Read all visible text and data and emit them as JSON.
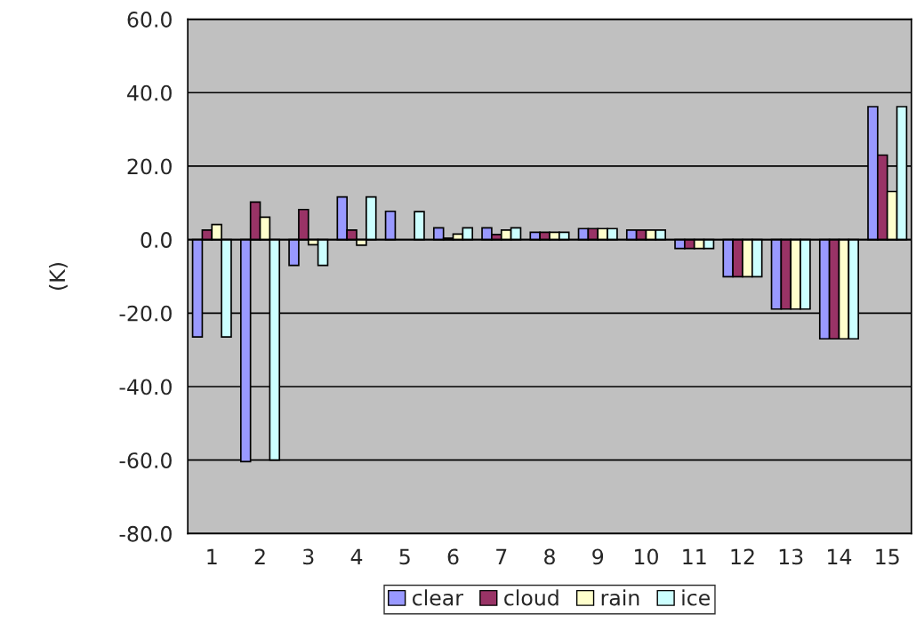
{
  "chart_data": {
    "type": "bar",
    "ylabel": "(K)",
    "categories": [
      "1",
      "2",
      "3",
      "4",
      "5",
      "6",
      "7",
      "8",
      "9",
      "10",
      "11",
      "12",
      "13",
      "14",
      "15"
    ],
    "series": [
      {
        "name": "clear",
        "color": "#9999ff",
        "values": [
          -26.5,
          -60.4,
          -7.0,
          11.6,
          7.7,
          3.2,
          3.2,
          2.0,
          3.0,
          2.6,
          -2.4,
          -10.1,
          -18.9,
          -27.0,
          36.2
        ]
      },
      {
        "name": "cloud",
        "color": "#993366",
        "values": [
          2.6,
          10.2,
          8.2,
          2.6,
          null,
          0.4,
          1.4,
          2.0,
          3.0,
          2.6,
          -2.4,
          -10.1,
          -18.9,
          -27.0,
          23.0
        ]
      },
      {
        "name": "rain",
        "color": "#ffffcc",
        "values": [
          4.1,
          6.1,
          -1.4,
          -1.5,
          null,
          1.5,
          2.6,
          2.0,
          3.0,
          2.6,
          -2.4,
          -10.1,
          -18.9,
          -27.0,
          13.1
        ]
      },
      {
        "name": "ice",
        "color": "#ccffff",
        "values": [
          -26.5,
          -60.0,
          -7.0,
          11.6,
          7.6,
          3.2,
          3.2,
          2.0,
          3.0,
          2.6,
          -2.4,
          -10.1,
          -18.9,
          -27.0,
          36.2
        ]
      }
    ],
    "ylim": [
      -80,
      60
    ],
    "yticks": [
      {
        "value": -80,
        "label": "-80.0"
      },
      {
        "value": -60,
        "label": "-60.0"
      },
      {
        "value": -40,
        "label": "-40.0"
      },
      {
        "value": -20,
        "label": "-20.0"
      },
      {
        "value": 0,
        "label": "0.0"
      },
      {
        "value": 20,
        "label": "20.0"
      },
      {
        "value": 40,
        "label": "40.0"
      },
      {
        "value": 60,
        "label": "60.0"
      }
    ],
    "grid": "y",
    "legend": "bottom"
  }
}
